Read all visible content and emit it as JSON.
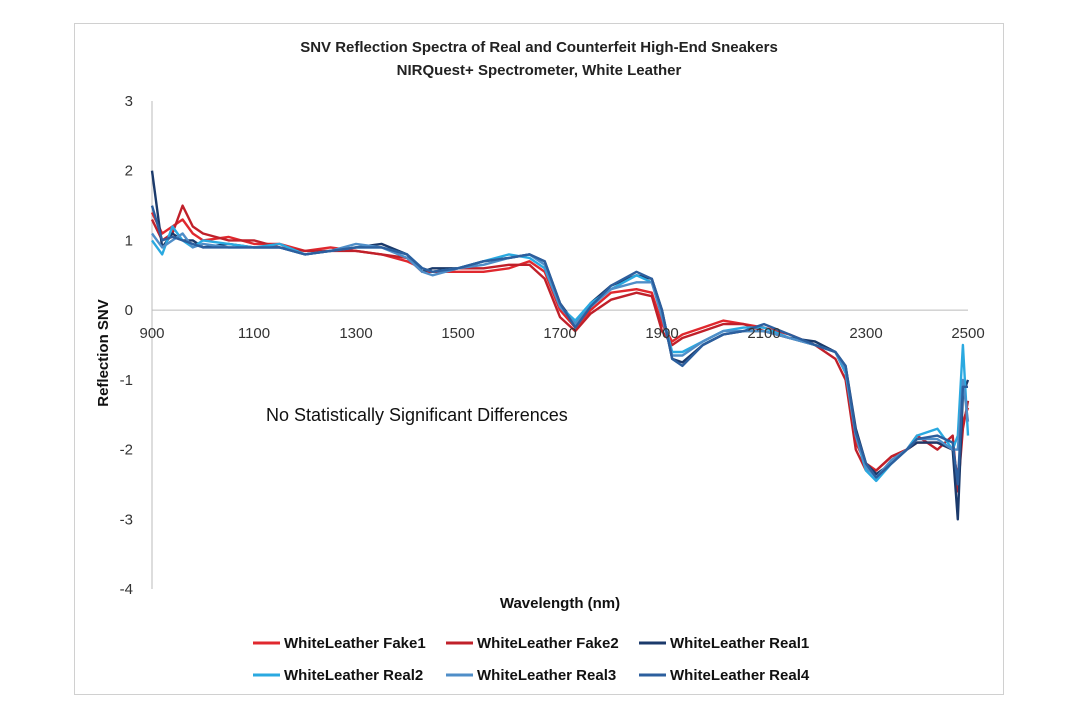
{
  "chart_data": {
    "type": "line",
    "title": "SNV Reflection Spectra of Real and Counterfeit High-End Sneakers",
    "subtitle": "NIRQuest+ Spectrometer, White Leather",
    "xlabel": "Wavelength (nm)",
    "ylabel": "Reflection SNV",
    "xlim": [
      900,
      2500
    ],
    "ylim": [
      -4,
      3
    ],
    "x_ticks": [
      900,
      1100,
      1300,
      1500,
      1700,
      1900,
      2100,
      2300,
      2500
    ],
    "y_ticks": [
      3,
      2,
      1,
      0,
      -1,
      -2,
      -3,
      -4
    ],
    "grid": false,
    "legend_position": "bottom",
    "annotation": "No Statistically Significant Differences",
    "x": [
      900,
      920,
      940,
      960,
      980,
      1000,
      1050,
      1100,
      1150,
      1200,
      1250,
      1300,
      1350,
      1400,
      1430,
      1450,
      1500,
      1550,
      1600,
      1640,
      1670,
      1700,
      1730,
      1760,
      1800,
      1850,
      1880,
      1900,
      1920,
      1940,
      1980,
      2020,
      2060,
      2100,
      2150,
      2200,
      2240,
      2260,
      2280,
      2300,
      2320,
      2350,
      2380,
      2400,
      2440,
      2470,
      2480,
      2490,
      2500
    ],
    "series": [
      {
        "name": "WhiteLeather Fake1",
        "color": "#e0282e",
        "values": [
          1.4,
          1.1,
          1.2,
          1.3,
          1.1,
          1.0,
          1.05,
          0.95,
          0.95,
          0.85,
          0.9,
          0.85,
          0.8,
          0.7,
          0.6,
          0.55,
          0.55,
          0.55,
          0.6,
          0.7,
          0.55,
          0.0,
          -0.25,
          0.0,
          0.25,
          0.3,
          0.25,
          -0.2,
          -0.45,
          -0.35,
          -0.25,
          -0.15,
          -0.2,
          -0.25,
          -0.35,
          -0.5,
          -0.6,
          -0.9,
          -1.9,
          -2.2,
          -2.3,
          -2.1,
          -2.0,
          -1.9,
          -1.9,
          -2.0,
          -2.4,
          -1.6,
          -1.4
        ]
      },
      {
        "name": "WhiteLeather Fake2",
        "color": "#c0202a",
        "values": [
          1.3,
          1.0,
          1.1,
          1.5,
          1.2,
          1.1,
          1.0,
          1.0,
          0.9,
          0.85,
          0.85,
          0.85,
          0.8,
          0.75,
          0.55,
          0.55,
          0.6,
          0.6,
          0.65,
          0.65,
          0.45,
          -0.1,
          -0.3,
          -0.05,
          0.15,
          0.25,
          0.2,
          -0.3,
          -0.5,
          -0.4,
          -0.3,
          -0.2,
          -0.2,
          -0.3,
          -0.4,
          -0.5,
          -0.7,
          -1.0,
          -2.0,
          -2.3,
          -2.3,
          -2.1,
          -2.0,
          -1.8,
          -2.0,
          -1.8,
          -2.6,
          -1.7,
          -1.3
        ]
      },
      {
        "name": "WhiteLeather Real1",
        "color": "#1b3a6b",
        "values": [
          2.0,
          0.9,
          1.1,
          1.0,
          1.0,
          0.9,
          0.95,
          0.9,
          0.9,
          0.8,
          0.85,
          0.9,
          0.95,
          0.8,
          0.55,
          0.6,
          0.6,
          0.7,
          0.75,
          0.8,
          0.7,
          0.1,
          -0.2,
          0.1,
          0.35,
          0.5,
          0.45,
          0.0,
          -0.7,
          -0.75,
          -0.5,
          -0.35,
          -0.3,
          -0.3,
          -0.4,
          -0.45,
          -0.6,
          -0.8,
          -1.7,
          -2.2,
          -2.35,
          -2.2,
          -2.0,
          -1.9,
          -1.9,
          -2.0,
          -3.0,
          -1.2,
          -1.0
        ]
      },
      {
        "name": "WhiteLeather Real2",
        "color": "#2aa9e0",
        "values": [
          1.0,
          0.8,
          1.2,
          1.0,
          0.9,
          1.0,
          0.95,
          0.9,
          0.95,
          0.8,
          0.85,
          0.9,
          0.9,
          0.8,
          0.6,
          0.55,
          0.6,
          0.7,
          0.8,
          0.75,
          0.6,
          0.05,
          -0.15,
          0.1,
          0.3,
          0.5,
          0.4,
          -0.05,
          -0.6,
          -0.6,
          -0.45,
          -0.3,
          -0.25,
          -0.25,
          -0.4,
          -0.5,
          -0.6,
          -0.9,
          -1.8,
          -2.3,
          -2.45,
          -2.2,
          -2.0,
          -1.8,
          -1.7,
          -2.0,
          -1.8,
          -0.5,
          -1.8
        ]
      },
      {
        "name": "WhiteLeather Real3",
        "color": "#4f8ec8",
        "values": [
          1.1,
          0.9,
          1.0,
          1.1,
          0.9,
          0.95,
          0.9,
          0.9,
          0.9,
          0.8,
          0.85,
          0.95,
          0.9,
          0.75,
          0.55,
          0.5,
          0.6,
          0.65,
          0.75,
          0.8,
          0.65,
          0.05,
          -0.2,
          0.05,
          0.3,
          0.4,
          0.4,
          -0.1,
          -0.65,
          -0.65,
          -0.45,
          -0.3,
          -0.3,
          -0.3,
          -0.4,
          -0.5,
          -0.6,
          -0.85,
          -1.8,
          -2.25,
          -2.4,
          -2.15,
          -2.0,
          -1.85,
          -1.85,
          -2.0,
          -2.0,
          -1.0,
          -1.6
        ]
      },
      {
        "name": "WhiteLeather Real4",
        "color": "#2c5f9e",
        "values": [
          1.5,
          1.0,
          1.05,
          1.0,
          0.95,
          0.9,
          0.9,
          0.9,
          0.9,
          0.8,
          0.85,
          0.9,
          0.9,
          0.8,
          0.6,
          0.55,
          0.6,
          0.7,
          0.75,
          0.8,
          0.7,
          0.1,
          -0.25,
          0.05,
          0.35,
          0.55,
          0.45,
          0.0,
          -0.7,
          -0.8,
          -0.5,
          -0.35,
          -0.3,
          -0.2,
          -0.35,
          -0.5,
          -0.6,
          -0.8,
          -1.75,
          -2.2,
          -2.4,
          -2.2,
          -2.0,
          -1.85,
          -1.8,
          -1.9,
          -2.5,
          -1.1,
          -1.1
        ]
      }
    ]
  }
}
